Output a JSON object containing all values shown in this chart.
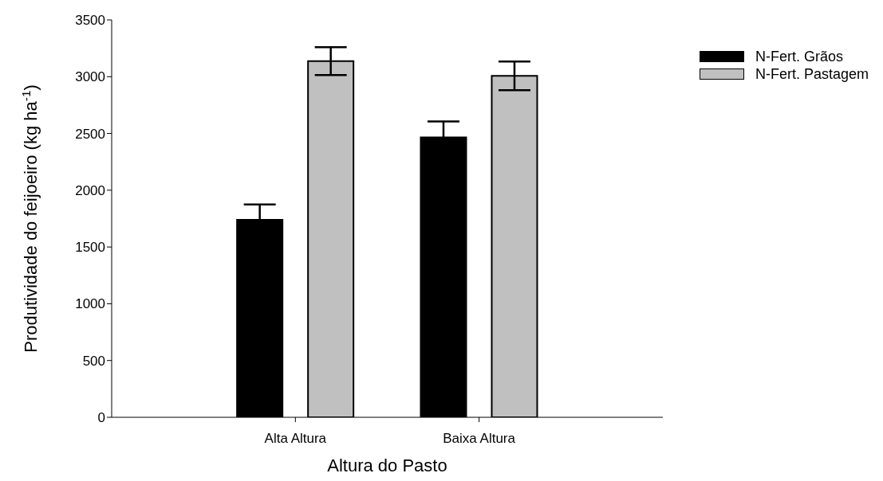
{
  "chart_data": {
    "type": "bar",
    "xlabel": "Altura do Pasto",
    "ylabel": "Produtividade do feijoeiro (kg ha$^{-1}$)",
    "categories": [
      "Alta Altura",
      "Baixa Altura"
    ],
    "series": [
      {
        "name": "N-Fert. Grãos",
        "color": "#000000",
        "values": [
          1740,
          2465
        ],
        "errors": [
          135,
          140
        ]
      },
      {
        "name": "N-Fert. Pastagem",
        "color": "#c0c0c0",
        "values": [
          3137,
          3007
        ],
        "errors": [
          122,
          126
        ]
      }
    ],
    "ylim": [
      0,
      3500
    ],
    "yticks": [
      0,
      500,
      1000,
      1500,
      2000,
      2500,
      3000,
      3500
    ],
    "grid": false,
    "legend": "top right"
  }
}
